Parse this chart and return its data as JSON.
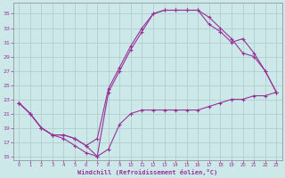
{
  "background_color": "#cce8e8",
  "grid_color": "#aacccc",
  "line_color": "#993399",
  "marker_color": "#993399",
  "xlabel": "Windchill (Refroidissement éolien,°C)",
  "xlabel_color": "#993399",
  "xtick_color": "#993399",
  "ytick_color": "#993399",
  "xlim": [
    -0.5,
    23.5
  ],
  "ylim": [
    14.5,
    36.5
  ],
  "yticks": [
    15,
    17,
    19,
    21,
    23,
    25,
    27,
    29,
    31,
    33,
    35
  ],
  "xticks": [
    0,
    1,
    2,
    3,
    4,
    5,
    6,
    7,
    8,
    9,
    10,
    11,
    12,
    13,
    14,
    15,
    16,
    17,
    18,
    19,
    20,
    21,
    22,
    23
  ],
  "curve1_x": [
    0,
    1,
    2,
    3,
    4,
    5,
    6,
    7,
    8,
    9,
    10,
    11,
    12,
    13,
    14,
    15,
    16,
    17,
    18,
    19,
    20,
    21,
    22,
    23
  ],
  "curve1_y": [
    22.5,
    21.0,
    19.0,
    18.0,
    17.5,
    16.5,
    15.5,
    15.0,
    16.0,
    19.5,
    21.0,
    21.5,
    21.5,
    21.5,
    21.5,
    21.5,
    21.5,
    22.0,
    22.5,
    23.0,
    23.0,
    23.5,
    23.5,
    24.0
  ],
  "curve2_x": [
    0,
    1,
    2,
    3,
    4,
    5,
    6,
    7,
    8,
    9,
    10,
    11,
    12,
    13,
    14,
    15,
    16,
    17,
    18,
    19,
    20,
    21,
    22,
    23
  ],
  "curve2_y": [
    22.5,
    21.0,
    19.0,
    18.0,
    18.0,
    17.5,
    16.5,
    15.0,
    24.0,
    27.0,
    30.0,
    32.5,
    35.0,
    35.5,
    35.5,
    35.5,
    35.5,
    33.5,
    32.5,
    31.0,
    31.5,
    29.5,
    27.0,
    24.0
  ],
  "curve3_x": [
    0,
    1,
    2,
    3,
    4,
    5,
    6,
    7,
    8,
    9,
    10,
    11,
    12,
    13,
    14,
    15,
    16,
    17,
    18,
    19,
    20,
    21,
    22,
    23
  ],
  "curve3_y": [
    22.5,
    21.0,
    19.0,
    18.0,
    18.0,
    17.5,
    16.5,
    17.5,
    24.5,
    27.5,
    30.5,
    33.0,
    35.0,
    35.5,
    35.5,
    35.5,
    35.5,
    34.5,
    33.0,
    31.5,
    29.5,
    29.0,
    27.0,
    24.0
  ]
}
